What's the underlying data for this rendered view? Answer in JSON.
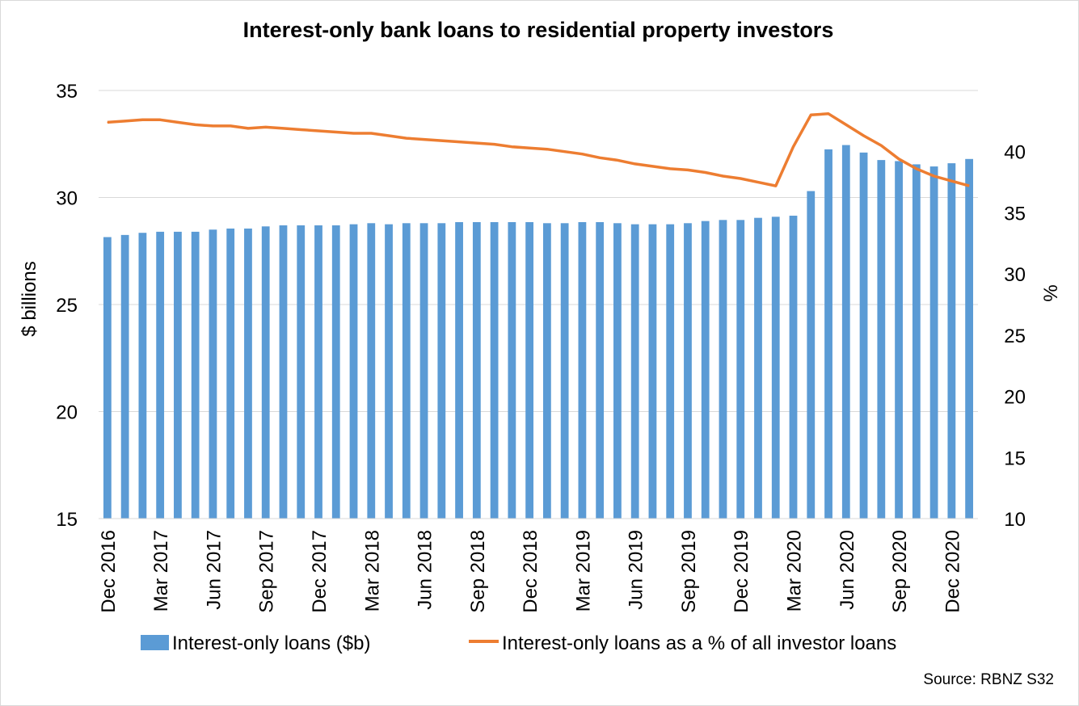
{
  "chart_data": {
    "type": "bar",
    "title": "Interest-only bank loans to residential property investors",
    "ylabel": "$ billions",
    "y2label": "%",
    "ylim": [
      15,
      35
    ],
    "y2lim": [
      10,
      45
    ],
    "yticks": [
      15,
      20,
      25,
      30,
      35
    ],
    "y2ticks": [
      10,
      15,
      20,
      25,
      30,
      35,
      40
    ],
    "grid": true,
    "legend_position": "bottom",
    "source": "Source: RBNZ S32",
    "x_tick_labels": [
      {
        "index": 0,
        "label": "Dec 2016"
      },
      {
        "index": 3,
        "label": "Mar 2017"
      },
      {
        "index": 6,
        "label": "Jun 2017"
      },
      {
        "index": 9,
        "label": "Sep 2017"
      },
      {
        "index": 12,
        "label": "Dec 2017"
      },
      {
        "index": 15,
        "label": "Mar 2018"
      },
      {
        "index": 18,
        "label": "Jun 2018"
      },
      {
        "index": 21,
        "label": "Sep 2018"
      },
      {
        "index": 24,
        "label": "Dec 2018"
      },
      {
        "index": 27,
        "label": "Mar 2019"
      },
      {
        "index": 30,
        "label": "Jun 2019"
      },
      {
        "index": 33,
        "label": "Sep 2019"
      },
      {
        "index": 36,
        "label": "Dec 2019"
      },
      {
        "index": 39,
        "label": "Mar 2020"
      },
      {
        "index": 42,
        "label": "Jun 2020"
      },
      {
        "index": 45,
        "label": "Sep 2020"
      },
      {
        "index": 48,
        "label": "Dec 2020"
      }
    ],
    "series": [
      {
        "name": "Interest-only loans ($b)",
        "type": "bar",
        "axis": "left",
        "color": "#5B9BD5",
        "values": [
          28.15,
          28.25,
          28.35,
          28.4,
          28.4,
          28.4,
          28.5,
          28.55,
          28.55,
          28.65,
          28.7,
          28.7,
          28.7,
          28.7,
          28.75,
          28.8,
          28.75,
          28.8,
          28.8,
          28.8,
          28.85,
          28.85,
          28.85,
          28.85,
          28.85,
          28.8,
          28.8,
          28.85,
          28.85,
          28.8,
          28.75,
          28.75,
          28.75,
          28.8,
          28.9,
          28.95,
          28.95,
          29.05,
          29.1,
          29.15,
          30.3,
          32.25,
          32.45,
          32.1,
          31.75,
          31.7,
          31.55,
          31.45,
          31.6,
          31.8
        ]
      },
      {
        "name": "Interest-only loans as a % of all investor loans",
        "type": "line",
        "axis": "right",
        "color": "#ED7D31",
        "values": [
          42.4,
          42.5,
          42.6,
          42.6,
          42.4,
          42.2,
          42.1,
          42.1,
          41.9,
          42.0,
          41.9,
          41.8,
          41.7,
          41.6,
          41.5,
          41.5,
          41.3,
          41.1,
          41.0,
          40.9,
          40.8,
          40.7,
          40.6,
          40.4,
          40.3,
          40.2,
          40.0,
          39.8,
          39.5,
          39.3,
          39.0,
          38.8,
          38.6,
          38.5,
          38.3,
          38.0,
          37.8,
          37.5,
          37.2,
          40.4,
          43.0,
          43.1,
          42.2,
          41.3,
          40.5,
          39.4,
          38.6,
          38.0,
          37.6,
          37.2
        ]
      }
    ]
  }
}
